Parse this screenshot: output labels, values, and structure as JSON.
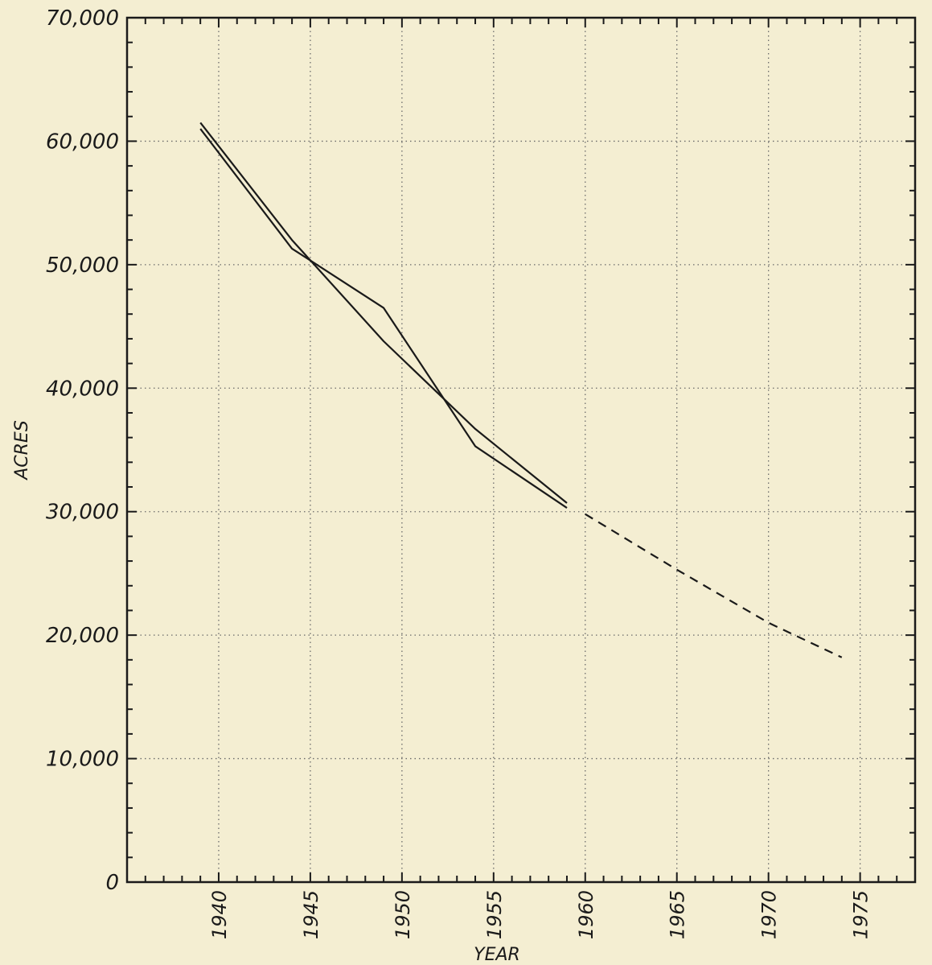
{
  "chart_data": {
    "type": "line",
    "title": "",
    "xlabel": "YEAR",
    "ylabel": "ACRES",
    "xlim": [
      1935,
      1978
    ],
    "ylim": [
      0,
      70000
    ],
    "x_ticks": [
      1940,
      1945,
      1950,
      1955,
      1960,
      1965,
      1970,
      1975
    ],
    "x_tick_labels": [
      "1940",
      "1945",
      "1950",
      "1955",
      "1960",
      "1965",
      "1970",
      "1975"
    ],
    "y_ticks": [
      0,
      10000,
      20000,
      30000,
      40000,
      50000,
      60000,
      70000
    ],
    "y_tick_labels": [
      "0",
      "10,000",
      "20,000",
      "30,000",
      "40,000",
      "50,000",
      "60,000",
      "70,000"
    ],
    "grid": true,
    "grid_style": "dotted",
    "series": [
      {
        "style": "solid",
        "x": [
          1939,
          1944,
          1949,
          1954,
          1959
        ],
        "y": [
          61000,
          51300,
          46500,
          35300,
          30300
        ]
      },
      {
        "style": "solid",
        "x": [
          1939,
          1944,
          1949,
          1954,
          1959
        ],
        "y": [
          61500,
          52000,
          43800,
          36700,
          30700
        ]
      },
      {
        "style": "dashed",
        "x": [
          1960,
          1965,
          1970,
          1974
        ],
        "y": [
          29800,
          25300,
          21000,
          18200
        ]
      }
    ],
    "colors": {
      "background": "#f4eed2",
      "ink": "#1a1a1a",
      "grid": "#6a6a6a"
    }
  }
}
